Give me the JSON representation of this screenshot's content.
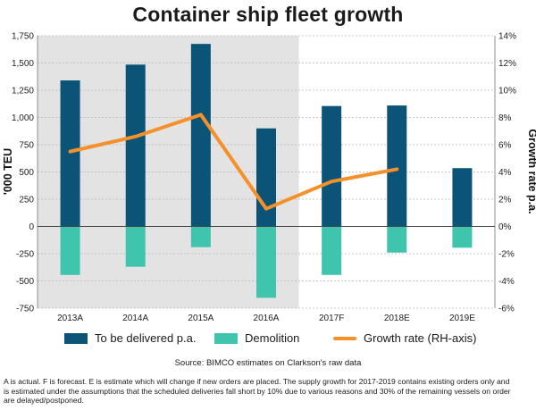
{
  "chart_data": {
    "type": "bar",
    "title": "Container ship fleet growth",
    "ylabel": "'000 TEU",
    "y2label": "Growth rate p.a.",
    "ylim": [
      -750,
      1750
    ],
    "y2lim": [
      -6,
      14
    ],
    "yticks": [
      "1,750",
      "1,500",
      "1,250",
      "1,000",
      "750",
      "500",
      "250",
      "0",
      "-250",
      "-500",
      "-750"
    ],
    "y2ticks": [
      "14%",
      "12%",
      "10%",
      "8%",
      "6%",
      "4%",
      "2%",
      "0%",
      "-2%",
      "-4%",
      "-6%"
    ],
    "categories": [
      "2013A",
      "2014A",
      "2015A",
      "2016A",
      "2017F",
      "2018E",
      "2019E"
    ],
    "actual_shaded": [
      "2013A",
      "2014A",
      "2015A",
      "2016A"
    ],
    "series": [
      {
        "name": "To be delivered p.a.",
        "type": "bar",
        "color": "#0b5477",
        "values": [
          1340,
          1485,
          1675,
          900,
          1105,
          1110,
          535
        ]
      },
      {
        "name": "Demolition",
        "type": "bar",
        "color": "#3fc4ad",
        "values": [
          -445,
          -370,
          -190,
          -655,
          -445,
          -240,
          -195
        ]
      },
      {
        "name": "Growth rate (RH-axis)",
        "type": "line",
        "axis": "right",
        "color": "#f5902a",
        "values": [
          5.5,
          6.6,
          8.2,
          1.3,
          3.3,
          4.2,
          null
        ]
      }
    ],
    "source": "Source: BIMCO estimates on Clarkson's raw data",
    "footnote": [
      "A is actual. F is forecast. E is estimate which will change if new orders are placed. The supply growth for 2017-2019 contains existing orders only and",
      "is estimated under the assumptions that the scheduled deliveries fall short by 10% due to various reasons and 30% of the remaining vessels on order",
      "are delayed/postponed."
    ]
  }
}
